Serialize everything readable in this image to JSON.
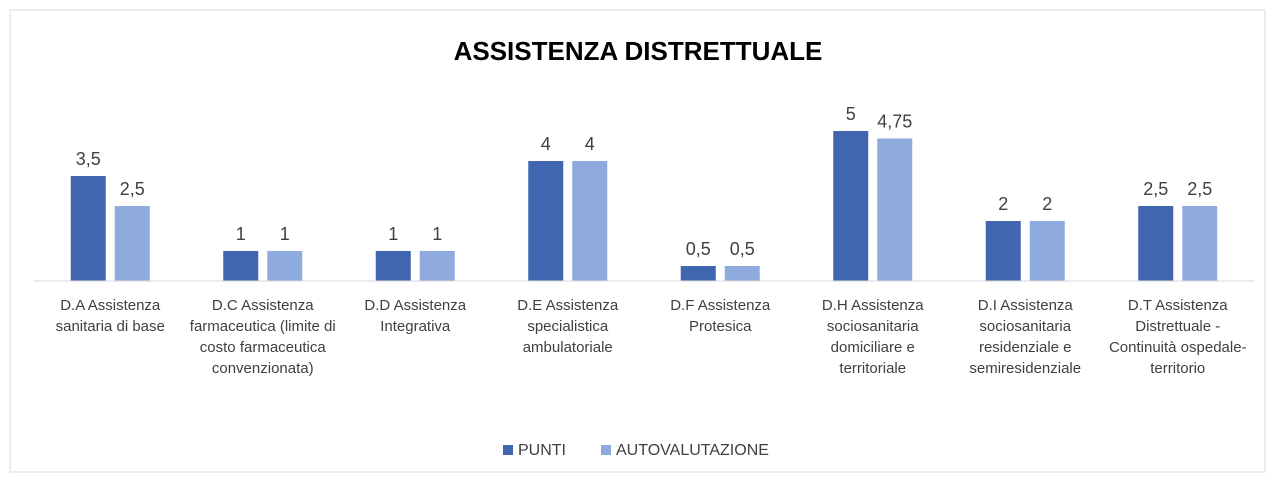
{
  "chart_data": {
    "type": "bar",
    "title": "ASSISTENZA DISTRETTUALE",
    "categories": [
      "D.A Assistenza sanitaria di base",
      "D.C Assistenza farmaceutica (limite di costo farmaceutica convenzionata)",
      "D.D Assistenza Integrativa",
      "D.E Assistenza specialistica ambulatoriale",
      "D.F Assistenza Protesica",
      "D.H Assistenza sociosanitaria domiciliare e territoriale",
      "D.I Assistenza sociosanitaria residenziale e semiresidenziale",
      "D.T Assistenza Distrettuale - Continuità ospedale-territorio"
    ],
    "series": [
      {
        "name": "PUNTI",
        "color": "#4066b0",
        "values": [
          3.5,
          1,
          1,
          4,
          0.5,
          5,
          2,
          2.5
        ],
        "value_labels": [
          "3,5",
          "1",
          "1",
          "4",
          "0,5",
          "5",
          "2",
          "2,5"
        ]
      },
      {
        "name": "AUTOVALUTAZIONE",
        "color": "#8faadc",
        "values": [
          2.5,
          1,
          1,
          4,
          0.5,
          4.75,
          2,
          2.5
        ],
        "value_labels": [
          "2,5",
          "1",
          "1",
          "4",
          "0,5",
          "4,75",
          "2",
          "2,5"
        ]
      }
    ],
    "ylim": [
      0,
      6
    ],
    "legend": "bottom"
  }
}
